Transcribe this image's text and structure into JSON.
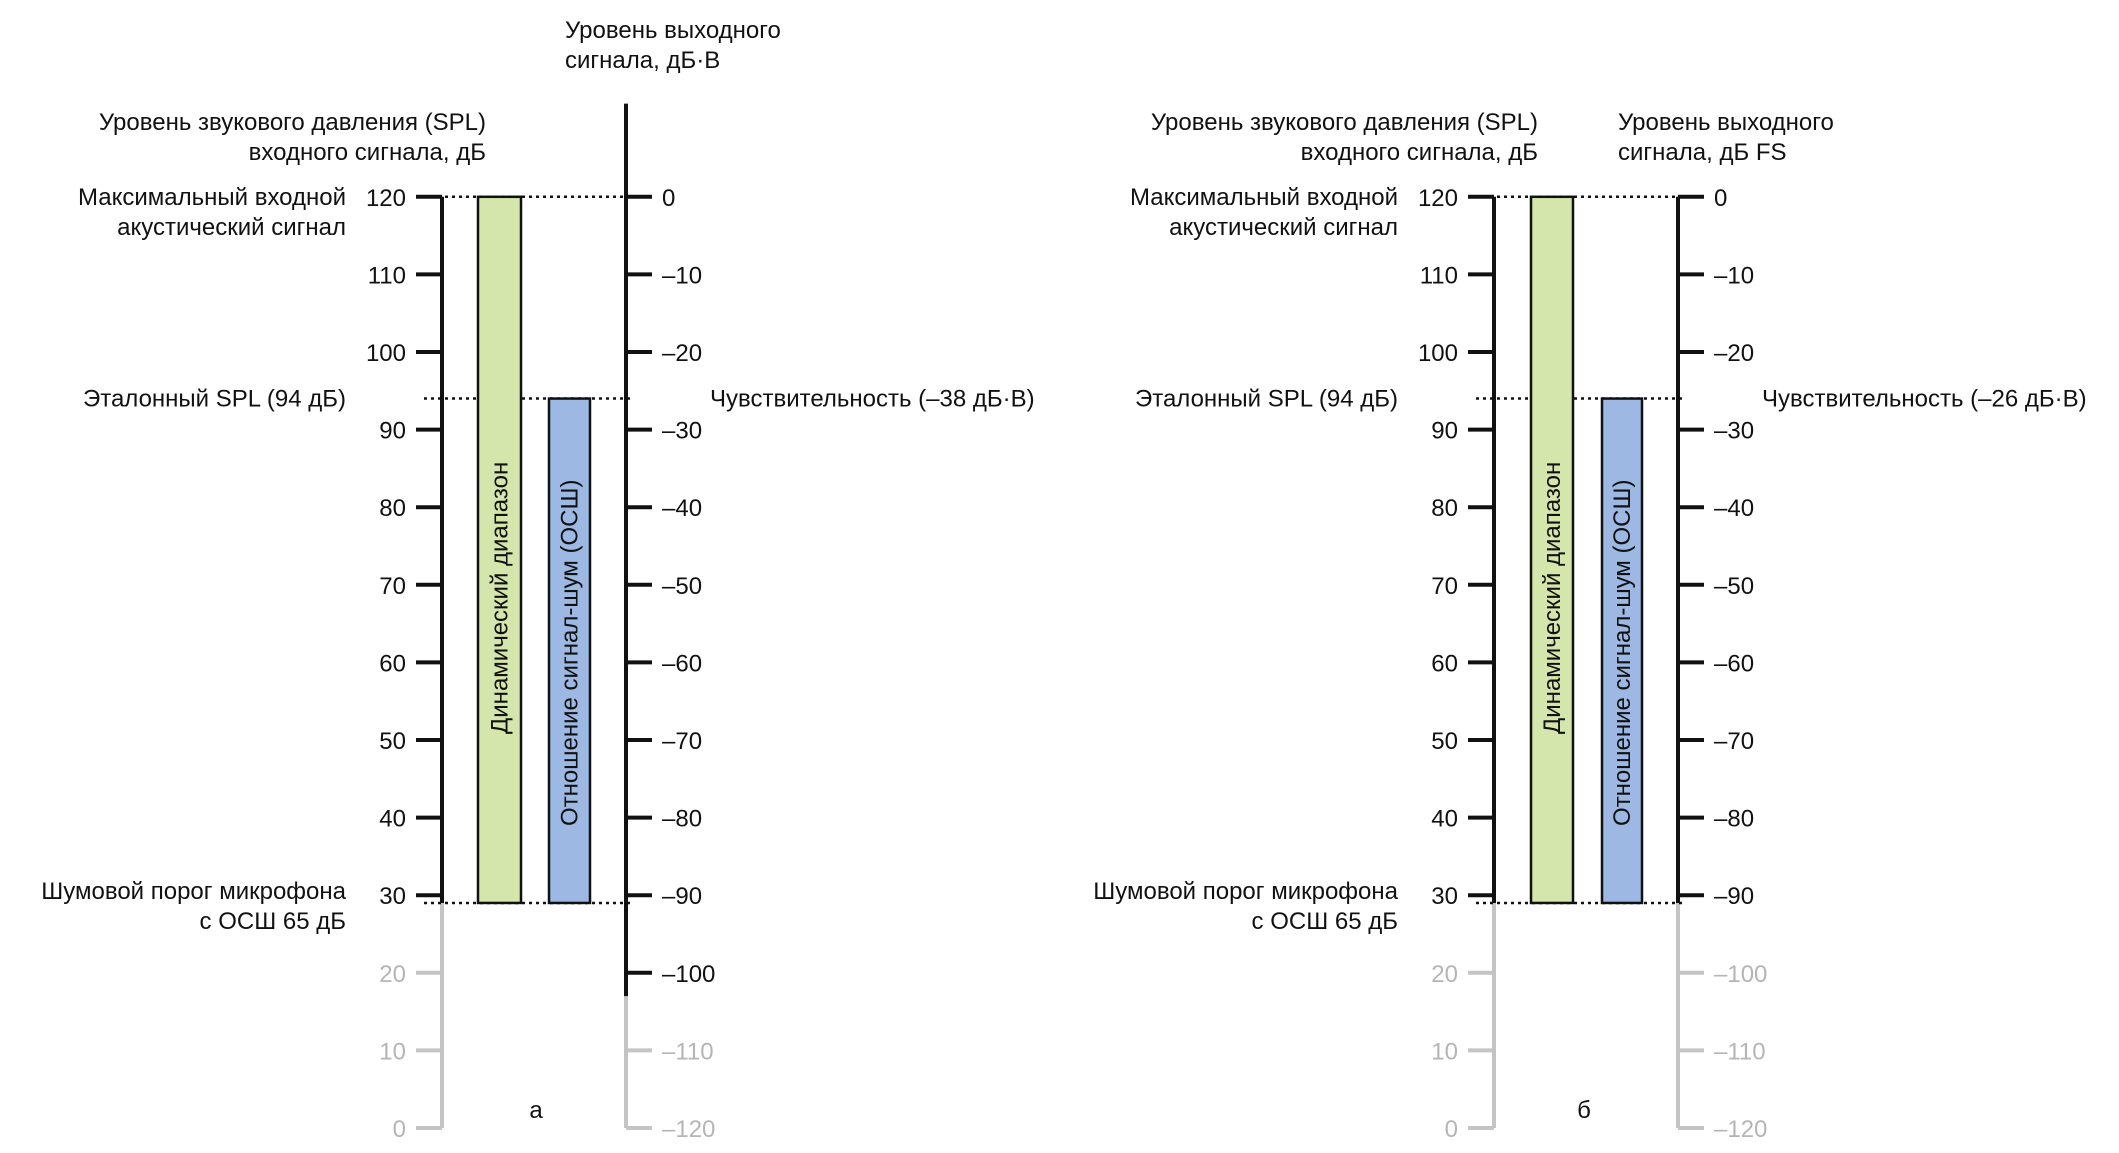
{
  "colors": {
    "axis_active": "#111111",
    "axis_inactive": "#c4c4c4",
    "dynamic_range_fill": "#d4e6ac",
    "snr_fill": "#9db8e2",
    "bar_stroke": "#111111"
  },
  "panels": [
    {
      "id": "a",
      "panel_label": "а",
      "input_axis_title": [
        "Уровень звукового давления (SPL)",
        "входного сигнала, дБ"
      ],
      "output_axis_title": [
        "Уровень выходного",
        "сигнала, дБ·В"
      ],
      "input_ticks": [
        "0",
        "10",
        "20",
        "30",
        "40",
        "50",
        "60",
        "70",
        "80",
        "90",
        "100",
        "110",
        "120"
      ],
      "output_ticks": [
        "0",
        "–10",
        "–20",
        "–30",
        "–40",
        "–50",
        "–60",
        "–70",
        "–80",
        "–90",
        "–100",
        "–110",
        "–120"
      ],
      "input_range": [
        0,
        120
      ],
      "output_range": [
        -120,
        0
      ],
      "output_axis_top": 12,
      "output_active_min": -103,
      "max_label": [
        "Максимальный входной",
        "акустический сигнал"
      ],
      "max_spl": 120,
      "ref_label": [
        "Эталонный SPL (94 дБ)"
      ],
      "ref_spl": 94,
      "noise_label": [
        "Шумовой порог микрофона",
        "с ОСШ 65 дБ"
      ],
      "noise_spl": 29,
      "input_active_min": 29,
      "sensitivity_label": "Чувствительность (–38 дБ·В)",
      "dynamic_range_label": "Динамический диапазон",
      "snr_label": "Отношение сигнал-шум (ОСШ)"
    },
    {
      "id": "b",
      "panel_label": "б",
      "input_axis_title": [
        "Уровень звукового давления (SPL)",
        "входного сигнала, дБ"
      ],
      "output_axis_title": [
        "Уровень выходного",
        "сигнала, дБ FS"
      ],
      "input_ticks": [
        "0",
        "10",
        "20",
        "30",
        "40",
        "50",
        "60",
        "70",
        "80",
        "90",
        "100",
        "110",
        "120"
      ],
      "output_ticks": [
        "0",
        "–10",
        "–20",
        "–30",
        "–40",
        "–50",
        "–60",
        "–70",
        "–80",
        "–90",
        "–100",
        "–110",
        "–120"
      ],
      "input_range": [
        0,
        120
      ],
      "output_range": [
        -120,
        0
      ],
      "output_axis_top": 0,
      "output_active_min": -91,
      "max_label": [
        "Максимальный входной",
        "акустический сигнал"
      ],
      "max_spl": 120,
      "ref_label": [
        "Эталонный SPL (94 дБ)"
      ],
      "ref_spl": 94,
      "noise_label": [
        "Шумовой порог микрофона",
        "с ОСШ 65 дБ"
      ],
      "noise_spl": 29,
      "input_active_min": 29,
      "sensitivity_label": "Чувствительность (–26 дБ·В)",
      "dynamic_range_label": "Динамический диапазон",
      "snr_label": "Отношение сигнал-шум (ОСШ)"
    }
  ]
}
